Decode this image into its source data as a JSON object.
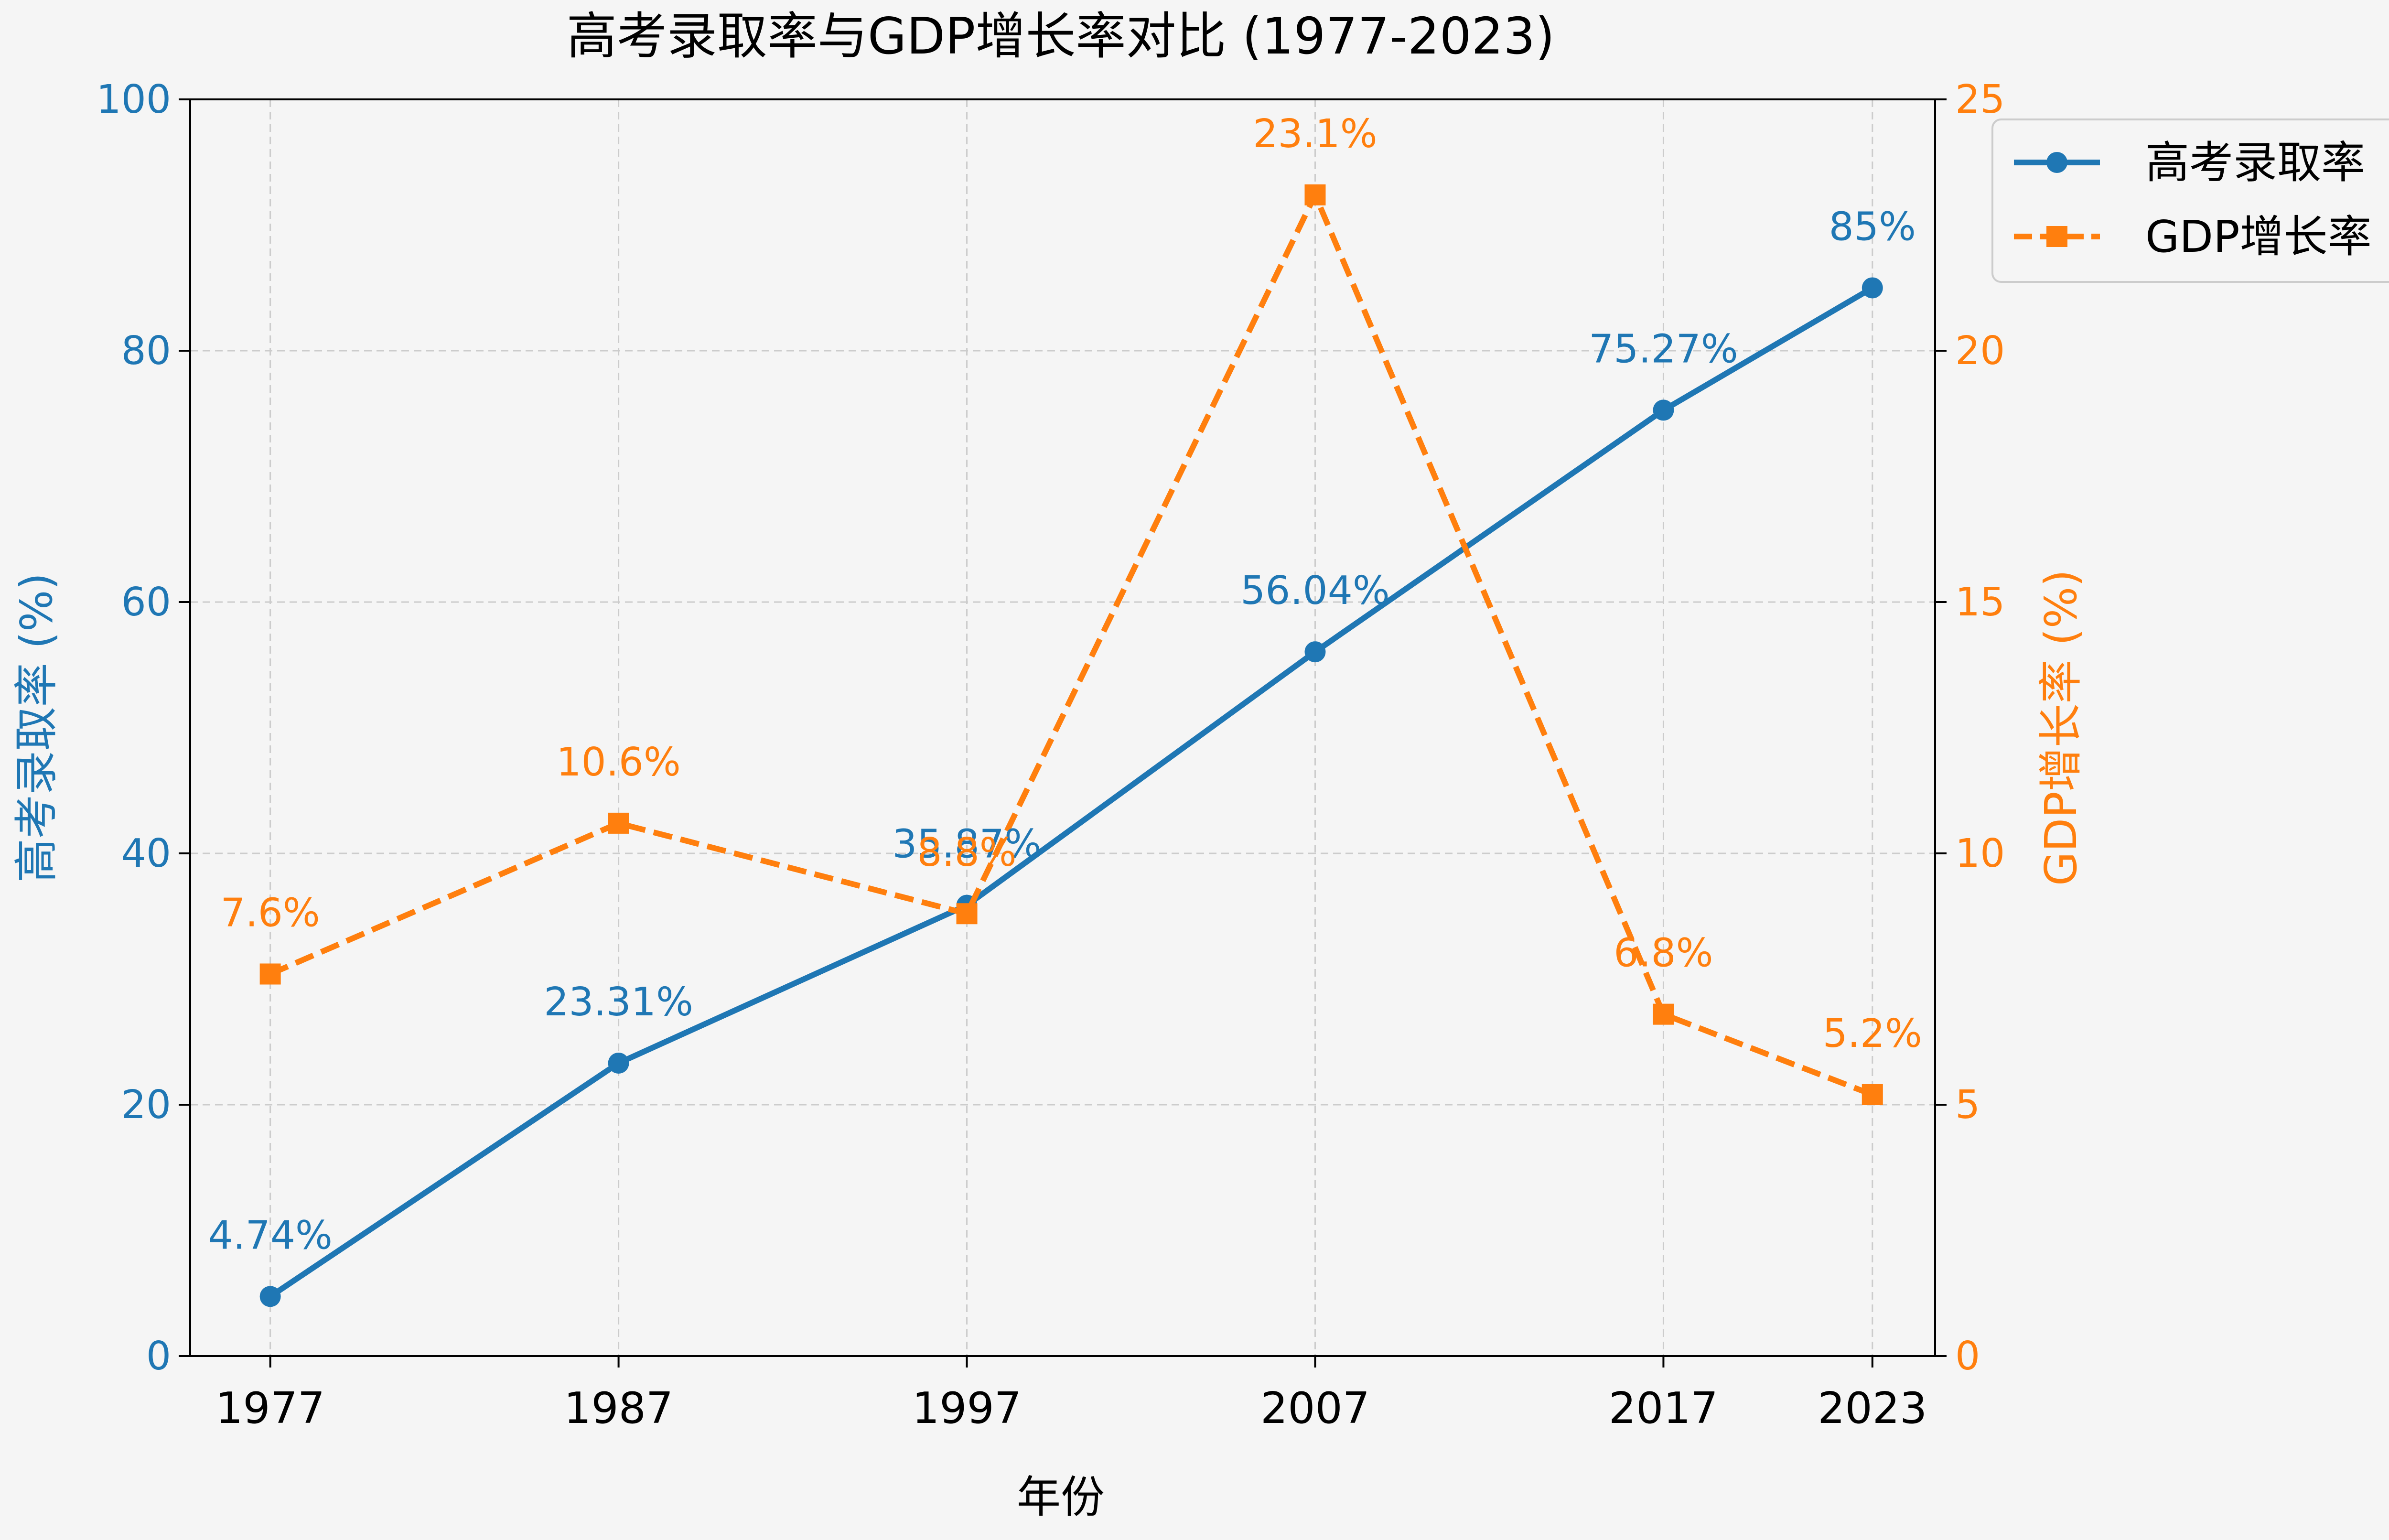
{
  "chart_data": {
    "type": "line",
    "title": "高考录取率与GDP增长率对比 (1977-2023)",
    "xlabel": "年份",
    "x": [
      1977,
      1987,
      1997,
      2007,
      2017,
      2023
    ],
    "x_tick_labels": [
      "1977",
      "1987",
      "1997",
      "2007",
      "2017",
      "2023"
    ],
    "series": [
      {
        "name": "高考录取率",
        "axis": "left",
        "values": [
          4.74,
          23.31,
          35.87,
          56.04,
          75.27,
          85
        ],
        "labels": [
          "4.74%",
          "23.31%",
          "35.87%",
          "56.04%",
          "75.27%",
          "85%"
        ],
        "color": "#1f77b4",
        "line_style": "solid",
        "marker": "circle"
      },
      {
        "name": "GDP增长率",
        "axis": "right",
        "values": [
          7.6,
          10.6,
          8.8,
          23.1,
          6.8,
          5.2
        ],
        "labels": [
          "7.6%",
          "10.6%",
          "8.8%",
          "23.1%",
          "6.8%",
          "5.2%"
        ],
        "color": "#ff7f0e",
        "line_style": "dashed",
        "marker": "square"
      }
    ],
    "y_left": {
      "label": "高考录取率 (%)",
      "lim": [
        0,
        100
      ],
      "ticks": [
        0,
        20,
        40,
        60,
        80,
        100
      ],
      "color": "#1f77b4"
    },
    "y_right": {
      "label": "GDP增长率 (%)",
      "lim": [
        0,
        25
      ],
      "ticks": [
        0,
        5,
        10,
        15,
        20,
        25
      ],
      "color": "#ff7f0e"
    },
    "x_range": [
      1974.7,
      2024.8
    ],
    "grid": true,
    "legend_position": "top-right outside"
  }
}
